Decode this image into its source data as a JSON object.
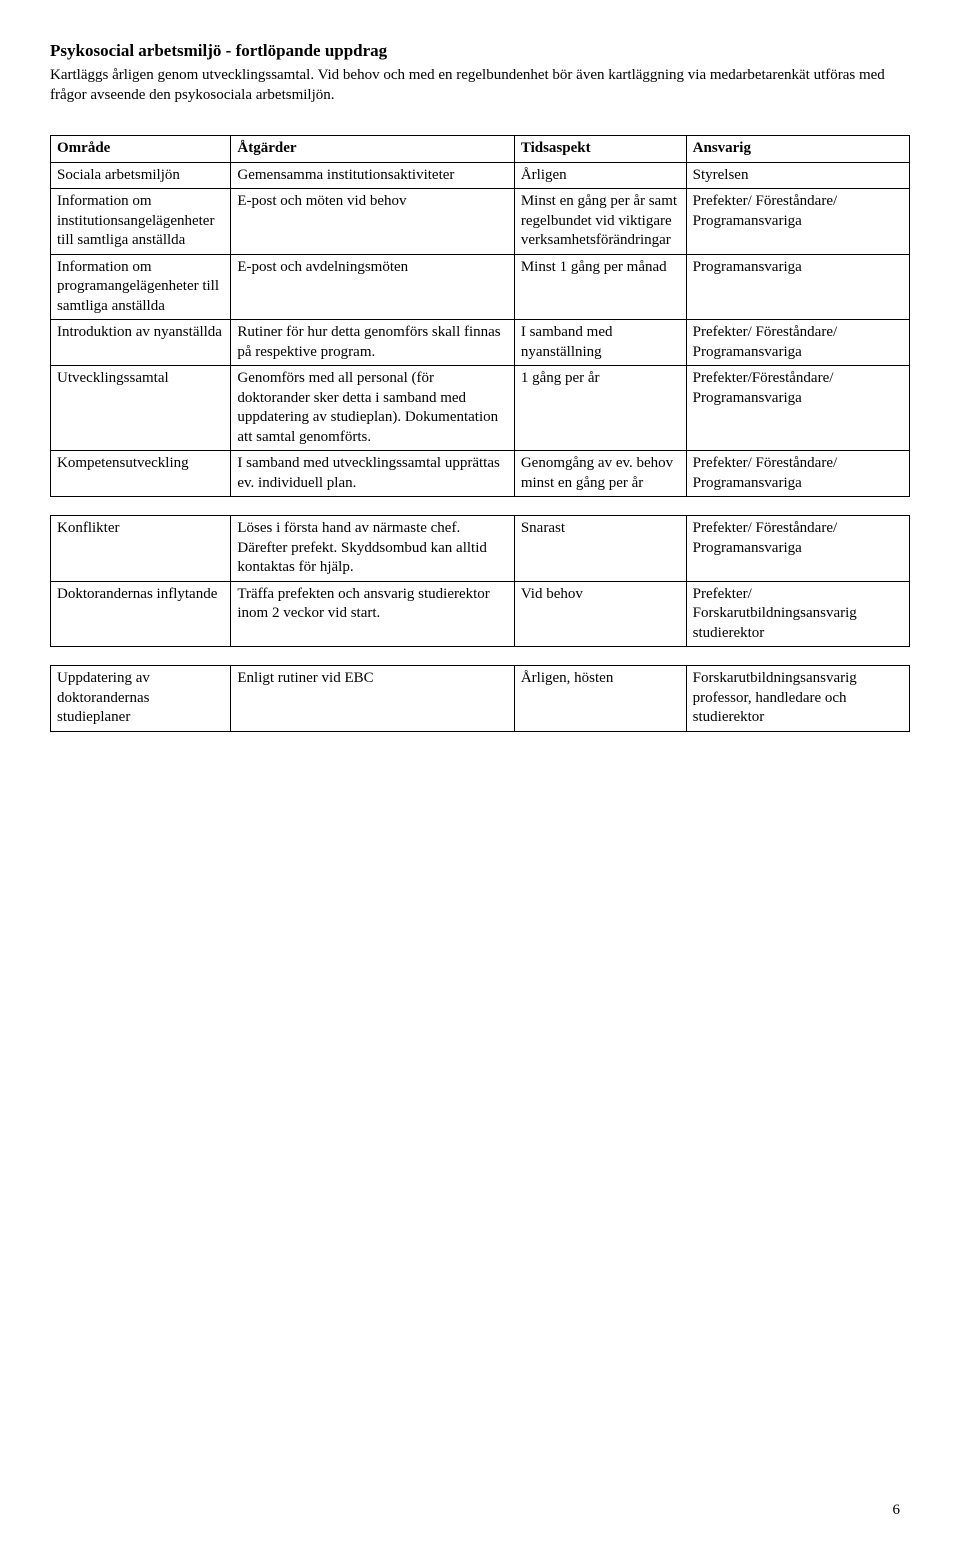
{
  "heading": "Psykosocial arbetsmiljö - fortlöpande uppdrag",
  "intro": "Kartläggs årligen genom utvecklingssamtal. Vid behov och med en regelbundenhet bör även kartläggning via medarbetarenkät utföras med frågor avseende den psykosociala arbetsmiljön.",
  "table": {
    "headers": [
      "Område",
      "Åtgärder",
      "Tidsaspekt",
      "Ansvarig"
    ],
    "section1": [
      {
        "c1": "Sociala arbetsmiljön",
        "c2": "Gemensamma institutionsaktiviteter",
        "c3": "Årligen",
        "c4": "Styrelsen"
      },
      {
        "c1": "Information om institutionsangelägenheter till samtliga anställda",
        "c2": "E-post och möten vid behov",
        "c3": "Minst en gång per år samt regelbundet vid viktigare verksamhetsförändringar",
        "c4": "Prefekter/ Föreståndare/ Programansvariga"
      },
      {
        "c1": "Information om programangelägenheter till samtliga anställda",
        "c2": "E-post och avdelningsmöten",
        "c3": "Minst 1 gång per månad",
        "c4": "Programansvariga"
      },
      {
        "c1": "Introduktion av nyanställda",
        "c2": "Rutiner för hur detta genomförs skall finnas på respektive program.",
        "c3": "I samband med nyanställning",
        "c4": "Prefekter/ Föreståndare/ Programansvariga"
      },
      {
        "c1": "Utvecklingssamtal",
        "c2": "Genomförs med all personal (för doktorander sker detta i samband med uppdatering av studieplan). Dokumentation att samtal genomförts.",
        "c3": "1 gång per år",
        "c4": "Prefekter/Föreståndare/ Programansvariga"
      },
      {
        "c1": "Kompetensutveckling",
        "c2": "I samband med utvecklingssamtal upprättas ev. individuell plan.",
        "c3": "Genomgång av ev. behov minst en gång per år",
        "c4": "Prefekter/ Föreståndare/ Programansvariga"
      }
    ],
    "section2": [
      {
        "c1": "Konflikter",
        "c2": "Löses i första hand av närmaste chef. Därefter prefekt.\nSkyddsombud kan alltid kontaktas för hjälp.",
        "c3": "Snarast",
        "c4": "Prefekter/ Föreståndare/ Programansvariga"
      },
      {
        "c1": "Doktorandernas inflytande",
        "c2": "Träffa prefekten och ansvarig studierektor inom 2 veckor vid start.",
        "c3": "Vid behov",
        "c4": "Prefekter/ Forskarutbildningsansvarig studierektor"
      }
    ],
    "section3": [
      {
        "c1": "Uppdatering av doktorandernas studieplaner",
        "c2": "Enligt rutiner vid EBC",
        "c3": "Årligen, hösten",
        "c4": "Forskarutbildningsansvarig professor, handledare och studierektor"
      }
    ]
  },
  "pagenum": "6"
}
